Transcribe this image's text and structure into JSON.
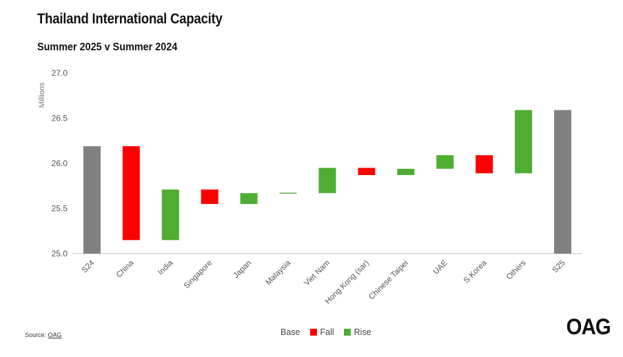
{
  "chart_data": {
    "type": "waterfall",
    "title": "Thailand International Capacity",
    "subtitle": "Summer 2025 v Summer 2024",
    "ylabel": "Millions",
    "ylim": [
      25.0,
      27.0
    ],
    "yticks": [
      "25.0",
      "25.5",
      "26.0",
      "26.5",
      "27.0"
    ],
    "grid": false,
    "legend_position": "bottom",
    "categories": [
      "S24",
      "China",
      "India",
      "Singapore",
      "Japan",
      "Malaysia",
      "Viet Nam",
      "Hong Kong (sar)",
      "Chinese Taipei",
      "UAE",
      "S Korea",
      "Others",
      "S25"
    ],
    "bars": [
      {
        "category": "S24",
        "kind": "base",
        "start": 25.0,
        "end": 26.19
      },
      {
        "category": "China",
        "kind": "fall",
        "start": 26.19,
        "end": 25.15
      },
      {
        "category": "India",
        "kind": "rise",
        "start": 25.15,
        "end": 25.71
      },
      {
        "category": "Singapore",
        "kind": "fall",
        "start": 25.71,
        "end": 25.55
      },
      {
        "category": "Japan",
        "kind": "rise",
        "start": 25.55,
        "end": 25.67
      },
      {
        "category": "Malaysia",
        "kind": "rise",
        "start": 25.665,
        "end": 25.675
      },
      {
        "category": "Viet Nam",
        "kind": "rise",
        "start": 25.67,
        "end": 25.95
      },
      {
        "category": "Hong Kong (sar)",
        "kind": "fall",
        "start": 25.95,
        "end": 25.87
      },
      {
        "category": "Chinese Taipei",
        "kind": "rise",
        "start": 25.87,
        "end": 25.94
      },
      {
        "category": "UAE",
        "kind": "rise",
        "start": 25.94,
        "end": 26.09
      },
      {
        "category": "S Korea",
        "kind": "fall",
        "start": 26.09,
        "end": 25.89
      },
      {
        "category": "Others",
        "kind": "rise",
        "start": 25.89,
        "end": 26.59
      },
      {
        "category": "S25",
        "kind": "base",
        "start": 25.0,
        "end": 26.59
      }
    ],
    "legend": [
      {
        "key": "base",
        "label": "Base",
        "color": "#ffffff"
      },
      {
        "key": "fall",
        "label": "Fall",
        "color": "#ff0000"
      },
      {
        "key": "rise",
        "label": "Rise",
        "color": "#4fad32"
      }
    ],
    "colors": {
      "base": "#808080",
      "fall": "#ff0000",
      "rise": "#4fad32",
      "axis": "#bfbfbf"
    }
  },
  "footer": {
    "source_prefix": "Source: ",
    "source_link": "OAG",
    "logo": "OAG"
  }
}
